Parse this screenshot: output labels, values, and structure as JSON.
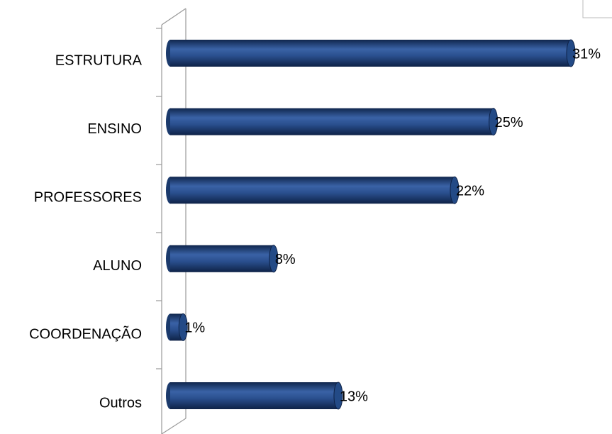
{
  "chart_data": {
    "type": "bar",
    "orientation": "horizontal",
    "categories": [
      "ESTRUTURA",
      "ENSINO",
      "PROFESSORES",
      "ALUNO",
      "COORDENAÇÃO",
      "Outros"
    ],
    "values": [
      31,
      25,
      22,
      8,
      1,
      13
    ],
    "value_labels": [
      "31%",
      "25%",
      "22%",
      "8%",
      "1%",
      "13%"
    ],
    "color": "#234a86"
  }
}
